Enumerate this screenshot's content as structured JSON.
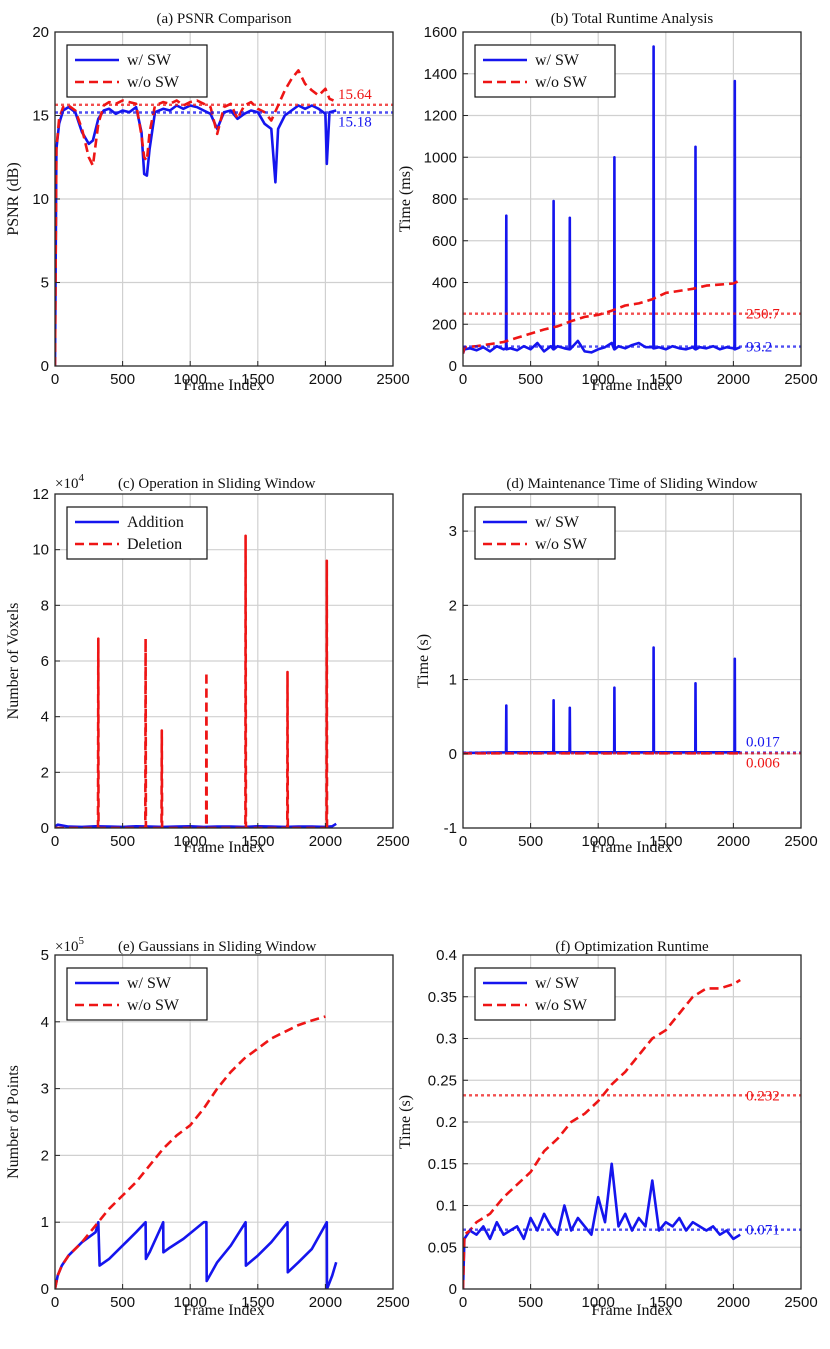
{
  "colors": {
    "blue": "#1515ee",
    "red": "#ee1515",
    "grid": "#d0d0d0",
    "axis": "#262626"
  },
  "chart_data": [
    {
      "id": "a",
      "type": "line",
      "title": "(a) PSNR Comparison",
      "xlabel": "Frame Index",
      "ylabel": "PSNR (dB)",
      "xlim": [
        0,
        2500
      ],
      "ylim": [
        0,
        20
      ],
      "xticks": [
        0,
        500,
        1000,
        1500,
        2000,
        2500
      ],
      "yticks": [
        0,
        5,
        10,
        15,
        20
      ],
      "legend": {
        "position": "top-left",
        "entries": [
          "w/ SW",
          "w/o SW"
        ]
      },
      "series": [
        {
          "name": "w/ SW",
          "style": "solid",
          "x": [
            0,
            10,
            30,
            60,
            100,
            150,
            200,
            250,
            280,
            320,
            360,
            400,
            450,
            500,
            550,
            600,
            640,
            660,
            680,
            700,
            740,
            800,
            850,
            900,
            950,
            1000,
            1050,
            1100,
            1150,
            1200,
            1250,
            1300,
            1350,
            1400,
            1450,
            1500,
            1550,
            1600,
            1630,
            1650,
            1700,
            1750,
            1800,
            1850,
            1900,
            1950,
            2000,
            2010,
            2030,
            2080
          ],
          "y": [
            0,
            13,
            14.5,
            15.3,
            15.5,
            15.2,
            14.0,
            13.3,
            13.5,
            14.8,
            15.3,
            15.4,
            15.1,
            15.3,
            15.2,
            15.5,
            14.0,
            11.5,
            11.4,
            13.0,
            15.2,
            15.4,
            15.3,
            15.6,
            15.4,
            15.6,
            15.5,
            15.3,
            15.1,
            14.2,
            15.2,
            15.3,
            14.8,
            15.1,
            15.3,
            15.2,
            14.5,
            14.2,
            11.0,
            14.2,
            15.0,
            15.3,
            15.6,
            15.4,
            15.6,
            15.4,
            15.1,
            12.1,
            15.2,
            15.3
          ]
        },
        {
          "name": "w/o SW",
          "style": "dashed",
          "x": [
            0,
            10,
            30,
            60,
            100,
            150,
            200,
            250,
            280,
            320,
            360,
            400,
            450,
            500,
            550,
            600,
            640,
            660,
            680,
            700,
            740,
            800,
            850,
            900,
            950,
            1000,
            1050,
            1100,
            1150,
            1200,
            1250,
            1300,
            1350,
            1400,
            1450,
            1500,
            1550,
            1600,
            1650,
            1700,
            1750,
            1800,
            1850,
            1900,
            1950,
            2000,
            2030,
            2060
          ],
          "y": [
            0,
            13,
            14.8,
            15.5,
            15.6,
            15.3,
            14.2,
            12.5,
            12.0,
            14.5,
            15.6,
            15.8,
            15.7,
            15.9,
            15.8,
            15.7,
            13.8,
            12.5,
            12.3,
            14.0,
            15.6,
            15.8,
            15.7,
            15.9,
            15.6,
            15.8,
            15.9,
            15.7,
            15.5,
            13.9,
            15.5,
            15.7,
            14.8,
            15.6,
            15.8,
            15.4,
            15.2,
            14.7,
            15.6,
            16.5,
            17.2,
            17.7,
            16.9,
            16.5,
            16.2,
            16.6,
            16.0,
            15.9
          ]
        }
      ],
      "refs": [
        {
          "series": "w/ SW",
          "value": 15.18,
          "label": "15.18"
        },
        {
          "series": "w/o SW",
          "value": 15.64,
          "label": "15.64"
        }
      ]
    },
    {
      "id": "b",
      "type": "line",
      "title": "(b) Total Runtime Analysis",
      "xlabel": "Frame Index",
      "ylabel": "Time (ms)",
      "xlim": [
        0,
        2500
      ],
      "ylim": [
        0,
        1600
      ],
      "xticks": [
        0,
        500,
        1000,
        1500,
        2000,
        2500
      ],
      "yticks": [
        0,
        200,
        400,
        600,
        800,
        1000,
        1200,
        1400,
        1600
      ],
      "legend": {
        "position": "top-left",
        "entries": [
          "w/ SW",
          "w/o SW"
        ]
      },
      "series": [
        {
          "name": "w/ SW",
          "style": "solid",
          "x": [
            0,
            10,
            50,
            100,
            150,
            200,
            250,
            300,
            318,
            320,
            322,
            350,
            400,
            450,
            500,
            550,
            600,
            650,
            668,
            670,
            672,
            700,
            750,
            788,
            790,
            792,
            850,
            900,
            950,
            1000,
            1050,
            1100,
            1118,
            1120,
            1122,
            1150,
            1200,
            1250,
            1300,
            1350,
            1400,
            1408,
            1410,
            1412,
            1450,
            1500,
            1550,
            1600,
            1650,
            1700,
            1718,
            1720,
            1722,
            1750,
            1800,
            1850,
            1900,
            1950,
            2000,
            2008,
            2010,
            2012,
            2050
          ],
          "y": [
            60,
            80,
            85,
            75,
            90,
            70,
            95,
            80,
            85,
            720,
            80,
            85,
            75,
            95,
            80,
            110,
            70,
            95,
            80,
            790,
            80,
            95,
            85,
            80,
            710,
            80,
            120,
            70,
            65,
            80,
            90,
            110,
            80,
            1000,
            80,
            95,
            85,
            100,
            110,
            90,
            90,
            85,
            1530,
            85,
            90,
            80,
            95,
            85,
            80,
            90,
            80,
            1050,
            80,
            90,
            85,
            95,
            80,
            90,
            85,
            80,
            1365,
            80,
            90
          ]
        },
        {
          "name": "w/o SW",
          "style": "dashed",
          "x": [
            0,
            10,
            100,
            200,
            300,
            400,
            500,
            600,
            700,
            800,
            900,
            1000,
            1100,
            1200,
            1300,
            1400,
            1500,
            1600,
            1700,
            1800,
            1900,
            2000,
            2050
          ],
          "y": [
            60,
            90,
            95,
            105,
            115,
            135,
            155,
            175,
            190,
            215,
            235,
            245,
            265,
            290,
            300,
            320,
            350,
            360,
            370,
            385,
            390,
            395,
            410
          ]
        }
      ],
      "refs": [
        {
          "series": "w/o SW",
          "value": 250.7,
          "label": "250.7"
        },
        {
          "series": "w/ SW",
          "value": 93.2,
          "label": "93.2"
        }
      ]
    },
    {
      "id": "c",
      "type": "line",
      "title": "(c) Operation in Sliding Window",
      "multiplier": "×10",
      "multiplier_exp": "4",
      "xlabel": "Frame Index",
      "ylabel": "Number of Voxels",
      "xlim": [
        0,
        2500
      ],
      "ylim": [
        0,
        12
      ],
      "xticks": [
        0,
        500,
        1000,
        1500,
        2000,
        2500
      ],
      "yticks": [
        0,
        2,
        4,
        6,
        8,
        10,
        12
      ],
      "legend": {
        "position": "top-left",
        "entries": [
          "Addition",
          "Deletion"
        ]
      },
      "series": [
        {
          "name": "Addition",
          "style": "solid",
          "x": [
            0,
            20,
            100,
            200,
            300,
            400,
            500,
            600,
            700,
            800,
            900,
            1000,
            1100,
            1200,
            1300,
            1400,
            1500,
            1600,
            1700,
            1800,
            1900,
            2000,
            2050,
            2080
          ],
          "y": [
            0.05,
            0.12,
            0.05,
            0.04,
            0.06,
            0.05,
            0.04,
            0.06,
            0.05,
            0.04,
            0.05,
            0.06,
            0.04,
            0.05,
            0.05,
            0.04,
            0.06,
            0.05,
            0.04,
            0.05,
            0.05,
            0.04,
            0.06,
            0.15
          ]
        },
        {
          "name": "Deletion",
          "style": "dashed",
          "x": [
            0,
            318,
            320,
            322,
            668,
            670,
            672,
            788,
            790,
            792,
            1118,
            1120,
            1122,
            1408,
            1410,
            1412,
            1718,
            1720,
            1722,
            2008,
            2010,
            2012,
            2050
          ],
          "y": [
            0,
            0,
            6.8,
            0,
            0,
            6.8,
            0,
            0,
            3.5,
            0,
            0,
            5.6,
            0,
            0,
            10.5,
            0,
            0,
            5.6,
            0,
            0,
            9.6,
            0,
            0
          ]
        }
      ]
    },
    {
      "id": "d",
      "type": "line",
      "title": "(d) Maintenance Time of Sliding Window",
      "xlabel": "Frame Index",
      "ylabel": "Time (s)",
      "xlim": [
        0,
        2500
      ],
      "ylim": [
        -1,
        3.5
      ],
      "xticks": [
        0,
        500,
        1000,
        1500,
        2000,
        2500
      ],
      "yticks": [
        -1,
        0,
        1,
        2,
        3
      ],
      "legend": {
        "position": "top-left",
        "entries": [
          "w/ SW",
          "w/o SW"
        ]
      },
      "series": [
        {
          "name": "w/ SW",
          "style": "solid",
          "x": [
            0,
            318,
            320,
            322,
            668,
            670,
            672,
            788,
            790,
            792,
            1118,
            1120,
            1122,
            1408,
            1410,
            1412,
            1718,
            1720,
            1722,
            2008,
            2010,
            2012,
            2050
          ],
          "y": [
            0.01,
            0.02,
            0.65,
            0.02,
            0.02,
            0.72,
            0.02,
            0.02,
            0.62,
            0.02,
            0.02,
            0.89,
            0.02,
            0.02,
            1.43,
            0.02,
            0.02,
            0.95,
            0.02,
            0.02,
            1.28,
            0.02,
            0.02
          ]
        },
        {
          "name": "w/o SW",
          "style": "dashed",
          "x": [
            0,
            500,
            1000,
            1500,
            2000,
            2050
          ],
          "y": [
            0.005,
            0.006,
            0.005,
            0.007,
            0.006,
            0.006
          ]
        }
      ],
      "refs": [
        {
          "series": "w/ SW",
          "value": 0.017,
          "label": "0.017"
        },
        {
          "series": "w/o SW",
          "value": 0.006,
          "label": "0.006"
        }
      ]
    },
    {
      "id": "e",
      "type": "line",
      "title": "(e) Gaussians in Sliding Window",
      "multiplier": "×10",
      "multiplier_exp": "5",
      "xlabel": "Frame Index",
      "ylabel": "Number of Points",
      "xlim": [
        0,
        2500
      ],
      "ylim": [
        0,
        5
      ],
      "xticks": [
        0,
        500,
        1000,
        1500,
        2000,
        2500
      ],
      "yticks": [
        0,
        1,
        2,
        3,
        4,
        5
      ],
      "legend": {
        "position": "top-left",
        "entries": [
          "w/ SW",
          "w/o SW"
        ]
      },
      "series": [
        {
          "name": "w/ SW",
          "style": "solid",
          "x": [
            0,
            20,
            50,
            100,
            200,
            300,
            320,
            330,
            400,
            500,
            600,
            670,
            672,
            700,
            790,
            800,
            802,
            850,
            950,
            1100,
            1120,
            1122,
            1200,
            1300,
            1410,
            1412,
            1500,
            1600,
            1720,
            1722,
            1800,
            1900,
            2010,
            2012,
            2050,
            2080
          ],
          "y": [
            0,
            0.2,
            0.35,
            0.5,
            0.7,
            0.85,
            1.0,
            0.35,
            0.45,
            0.65,
            0.85,
            1.0,
            0.45,
            0.55,
            0.95,
            1.0,
            0.55,
            0.62,
            0.75,
            1.0,
            1.0,
            0.12,
            0.4,
            0.65,
            1.0,
            0.35,
            0.5,
            0.7,
            1.0,
            0.25,
            0.4,
            0.6,
            1.0,
            0.0,
            0.2,
            0.4
          ]
        },
        {
          "name": "w/o SW",
          "style": "dashed",
          "x": [
            0,
            20,
            50,
            100,
            200,
            300,
            400,
            500,
            600,
            700,
            800,
            900,
            1000,
            1100,
            1200,
            1300,
            1400,
            1500,
            1600,
            1700,
            1800,
            1900,
            2000
          ],
          "y": [
            0,
            0.2,
            0.35,
            0.5,
            0.7,
            0.95,
            1.2,
            1.4,
            1.6,
            1.85,
            2.1,
            2.3,
            2.45,
            2.7,
            3.0,
            3.25,
            3.45,
            3.6,
            3.75,
            3.85,
            3.95,
            4.02,
            4.08
          ]
        }
      ]
    },
    {
      "id": "f",
      "type": "line",
      "title": "(f) Optimization Runtime",
      "xlabel": "Frame Index",
      "ylabel": "Time (s)",
      "xlim": [
        0,
        2500
      ],
      "ylim": [
        0,
        0.4
      ],
      "xticks": [
        0,
        500,
        1000,
        1500,
        2000,
        2500
      ],
      "yticks": [
        0,
        0.05,
        0.1,
        0.15,
        0.2,
        0.25,
        0.3,
        0.35,
        0.4
      ],
      "legend": {
        "position": "top-left",
        "entries": [
          "w/ SW",
          "w/o SW"
        ]
      },
      "series": [
        {
          "name": "w/ SW",
          "style": "solid",
          "x": [
            0,
            10,
            50,
            100,
            150,
            200,
            250,
            300,
            350,
            400,
            450,
            500,
            550,
            600,
            650,
            700,
            750,
            800,
            850,
            900,
            950,
            1000,
            1050,
            1100,
            1150,
            1200,
            1250,
            1300,
            1350,
            1400,
            1450,
            1500,
            1550,
            1600,
            1650,
            1700,
            1750,
            1800,
            1850,
            1900,
            1950,
            2000,
            2050
          ],
          "y": [
            0.0,
            0.06,
            0.07,
            0.065,
            0.075,
            0.06,
            0.08,
            0.065,
            0.07,
            0.075,
            0.06,
            0.085,
            0.07,
            0.09,
            0.075,
            0.065,
            0.1,
            0.07,
            0.085,
            0.075,
            0.065,
            0.11,
            0.08,
            0.15,
            0.075,
            0.09,
            0.07,
            0.085,
            0.075,
            0.13,
            0.07,
            0.08,
            0.075,
            0.085,
            0.07,
            0.08,
            0.075,
            0.07,
            0.075,
            0.065,
            0.07,
            0.06,
            0.065
          ]
        },
        {
          "name": "w/o SW",
          "style": "dashed",
          "x": [
            0,
            10,
            50,
            100,
            200,
            300,
            400,
            500,
            600,
            700,
            800,
            900,
            1000,
            1100,
            1200,
            1300,
            1400,
            1500,
            1600,
            1700,
            1800,
            1900,
            2000,
            2050
          ],
          "y": [
            0.0,
            0.065,
            0.07,
            0.08,
            0.09,
            0.11,
            0.125,
            0.14,
            0.165,
            0.18,
            0.2,
            0.21,
            0.225,
            0.245,
            0.26,
            0.28,
            0.3,
            0.31,
            0.33,
            0.35,
            0.36,
            0.36,
            0.365,
            0.37
          ]
        }
      ],
      "refs": [
        {
          "series": "w/o SW",
          "value": 0.232,
          "label": "0.232"
        },
        {
          "series": "w/ SW",
          "value": 0.071,
          "label": "0.071"
        }
      ]
    }
  ]
}
